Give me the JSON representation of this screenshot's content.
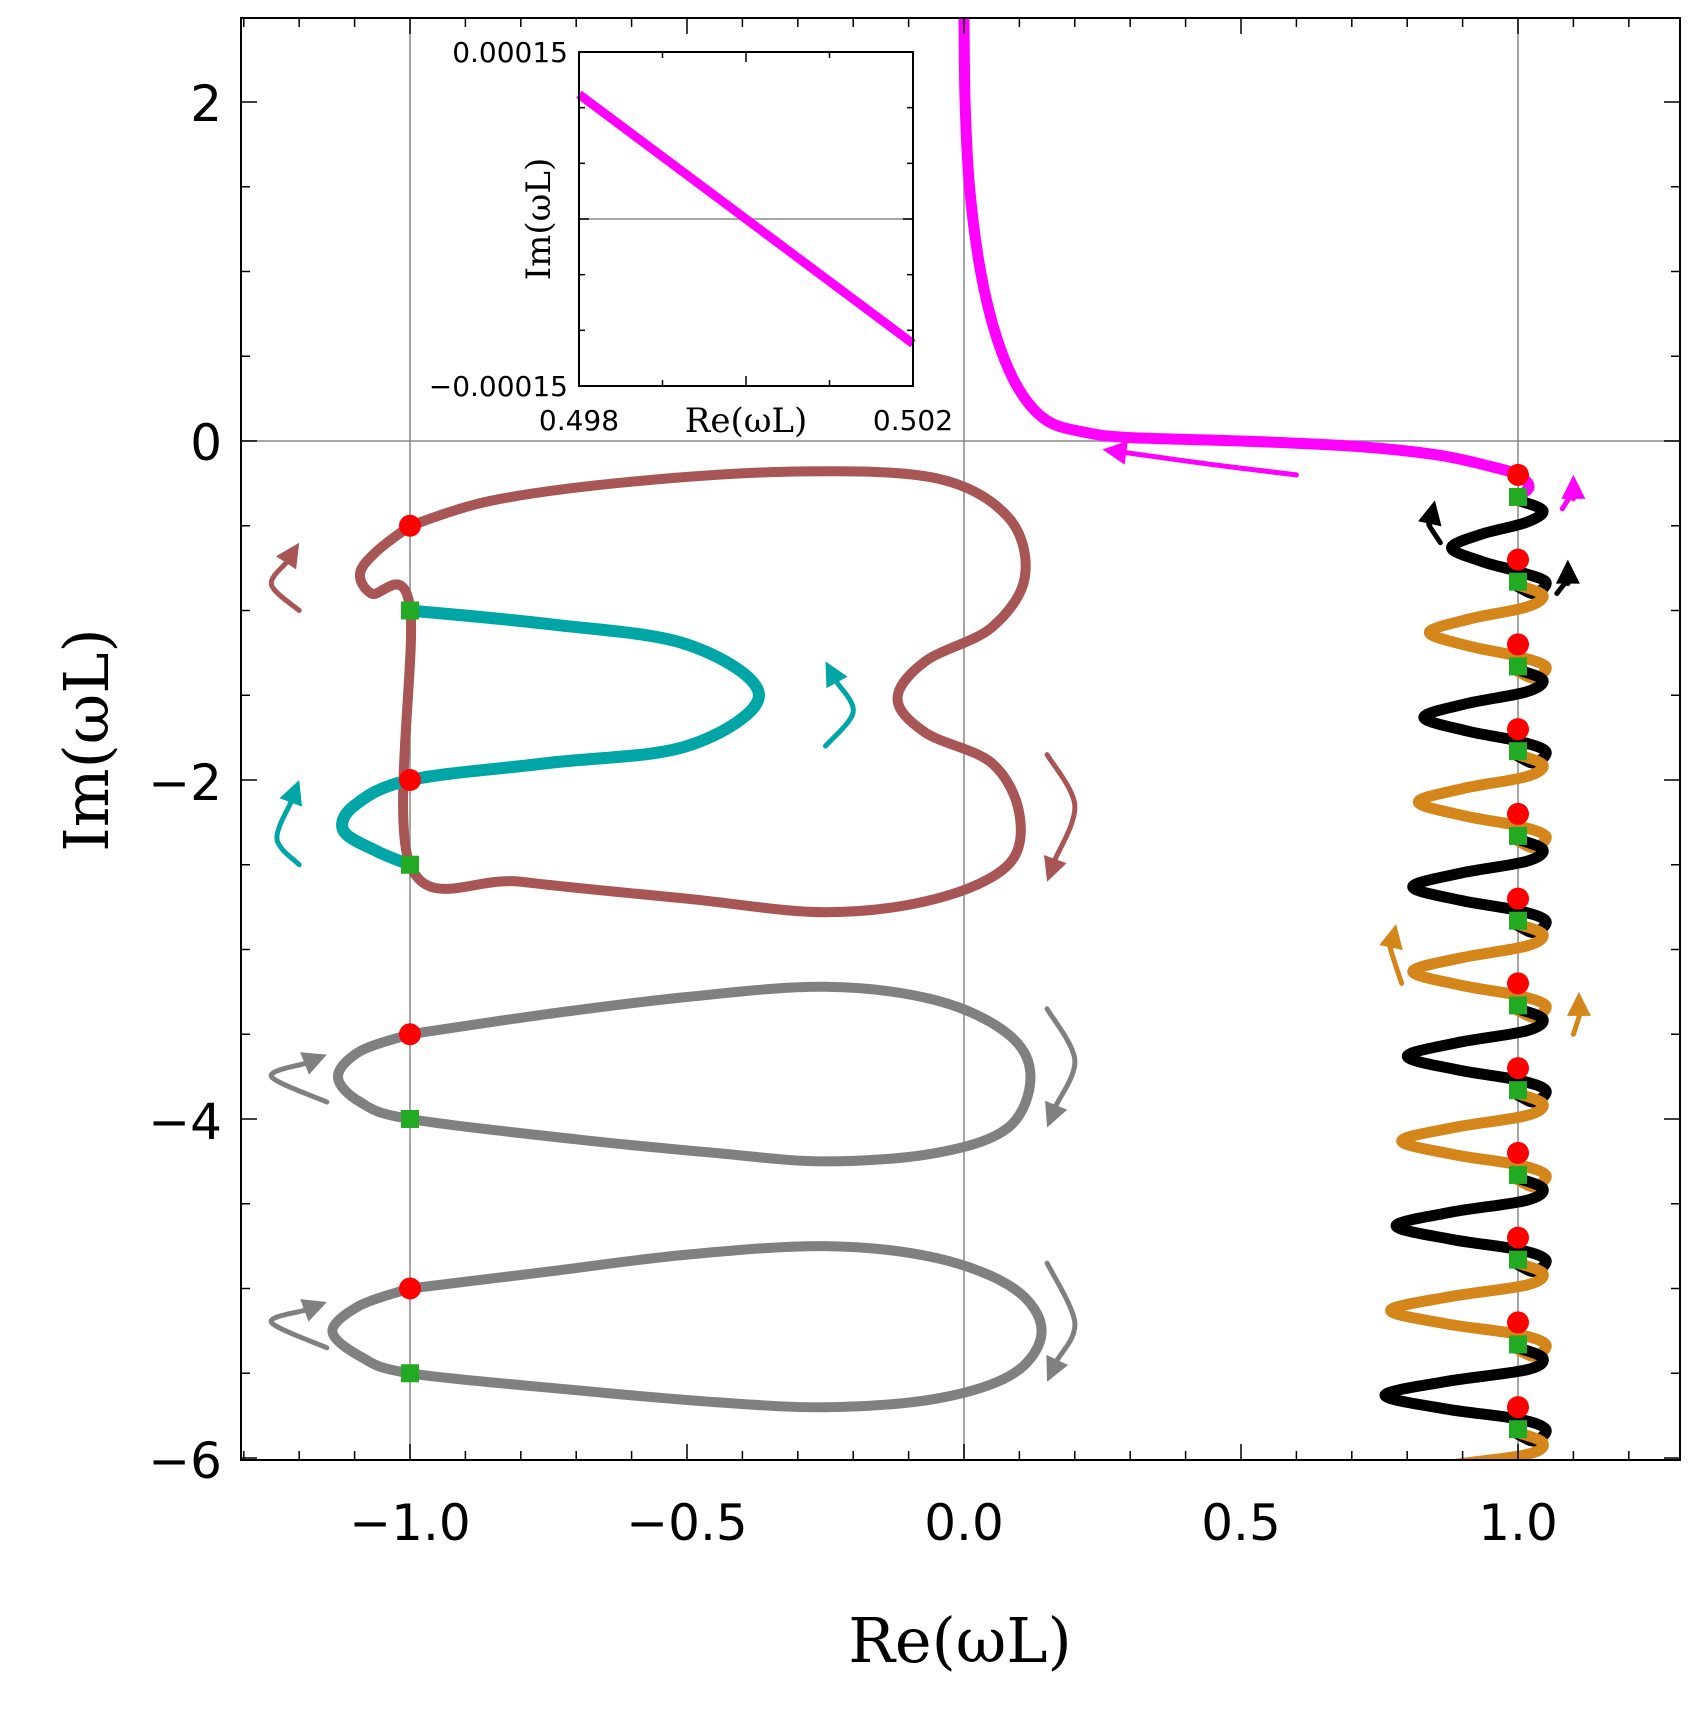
{
  "chart_data": {
    "type": "line",
    "title": "",
    "xlabel": "Re(ωL)",
    "ylabel": "Im(ωL)",
    "xlim": [
      -1.3,
      1.3
    ],
    "ylim": [
      -6,
      2.5
    ],
    "x_ticks": [
      "−1.0",
      "−0.5",
      "0.0",
      "0.5",
      "1.0"
    ],
    "x_tick_values": [
      -1.0,
      -0.5,
      0.0,
      0.5,
      1.0
    ],
    "y_ticks": [
      "2",
      "0",
      "−2",
      "−4",
      "−6"
    ],
    "y_tick_values": [
      2,
      0,
      -2,
      -4,
      -6
    ],
    "gridlines": {
      "x": [
        -1,
        0,
        1
      ],
      "y": [
        0
      ]
    },
    "colors": {
      "magenta": "#ff00ff",
      "brown": "#a85555",
      "teal": "#00a6a6",
      "gray": "#808080",
      "black": "#000000",
      "orange": "#d4861a",
      "red_marker": "#ff0000",
      "green_marker": "#22aa22"
    },
    "series": [
      {
        "name": "magenta",
        "color": "#ff00ff",
        "points": [
          [
            0.0,
            2.5
          ],
          [
            0.002,
            2.0
          ],
          [
            0.01,
            1.5
          ],
          [
            0.03,
            1.0
          ],
          [
            0.06,
            0.6
          ],
          [
            0.1,
            0.3
          ],
          [
            0.15,
            0.12
          ],
          [
            0.22,
            0.05
          ],
          [
            0.3,
            0.02
          ],
          [
            0.5,
            0.0
          ],
          [
            0.7,
            -0.03
          ],
          [
            0.85,
            -0.08
          ],
          [
            0.95,
            -0.15
          ],
          [
            1.0,
            -0.2
          ],
          [
            1.02,
            -0.27
          ],
          [
            1.0,
            -0.33
          ]
        ]
      },
      {
        "name": "brown",
        "color": "#a85555",
        "points": [
          [
            -1.0,
            -0.5
          ],
          [
            -1.06,
            -0.65
          ],
          [
            -1.09,
            -0.78
          ],
          [
            -1.07,
            -0.9
          ],
          [
            -1.0,
            -0.98
          ],
          [
            -1.0,
            -2.5
          ],
          [
            -0.8,
            -2.6
          ],
          [
            -0.5,
            -2.7
          ],
          [
            -0.25,
            -2.78
          ],
          [
            -0.05,
            -2.7
          ],
          [
            0.08,
            -2.5
          ],
          [
            0.1,
            -2.2
          ],
          [
            0.05,
            -1.9
          ],
          [
            -0.07,
            -1.72
          ],
          [
            -0.12,
            -1.52
          ],
          [
            -0.07,
            -1.3
          ],
          [
            0.05,
            -1.1
          ],
          [
            0.11,
            -0.8
          ],
          [
            0.08,
            -0.45
          ],
          [
            -0.05,
            -0.22
          ],
          [
            -0.3,
            -0.18
          ],
          [
            -0.6,
            -0.24
          ],
          [
            -0.85,
            -0.35
          ],
          [
            -1.0,
            -0.5
          ]
        ]
      },
      {
        "name": "teal",
        "color": "#00a6a6",
        "points": [
          [
            -1.0,
            -1.0
          ],
          [
            -0.75,
            -1.08
          ],
          [
            -0.5,
            -1.2
          ],
          [
            -0.37,
            -1.5
          ],
          [
            -0.5,
            -1.8
          ],
          [
            -0.75,
            -1.9
          ],
          [
            -1.0,
            -2.0
          ],
          [
            -1.1,
            -2.15
          ],
          [
            -1.12,
            -2.3
          ],
          [
            -1.06,
            -2.42
          ],
          [
            -1.0,
            -2.5
          ]
        ]
      },
      {
        "name": "gray-1",
        "color": "#808080",
        "points": [
          [
            -1.0,
            -3.5
          ],
          [
            -1.09,
            -3.6
          ],
          [
            -1.13,
            -3.75
          ],
          [
            -1.09,
            -3.9
          ],
          [
            -1.0,
            -4.0
          ],
          [
            -0.7,
            -4.12
          ],
          [
            -0.45,
            -4.2
          ],
          [
            -0.25,
            -4.25
          ],
          [
            -0.05,
            -4.2
          ],
          [
            0.08,
            -4.05
          ],
          [
            0.12,
            -3.75
          ],
          [
            0.08,
            -3.5
          ],
          [
            -0.05,
            -3.3
          ],
          [
            -0.25,
            -3.22
          ],
          [
            -0.5,
            -3.28
          ],
          [
            -0.75,
            -3.38
          ],
          [
            -1.0,
            -3.5
          ]
        ]
      },
      {
        "name": "gray-2",
        "color": "#808080",
        "points": [
          [
            -1.0,
            -5.0
          ],
          [
            -1.09,
            -5.1
          ],
          [
            -1.14,
            -5.25
          ],
          [
            -1.09,
            -5.4
          ],
          [
            -1.0,
            -5.5
          ],
          [
            -0.7,
            -5.6
          ],
          [
            -0.45,
            -5.67
          ],
          [
            -0.25,
            -5.7
          ],
          [
            -0.05,
            -5.65
          ],
          [
            0.09,
            -5.5
          ],
          [
            0.14,
            -5.25
          ],
          [
            0.09,
            -5.0
          ],
          [
            -0.05,
            -4.82
          ],
          [
            -0.25,
            -4.75
          ],
          [
            -0.5,
            -4.8
          ],
          [
            -0.75,
            -4.9
          ],
          [
            -1.0,
            -5.0
          ]
        ]
      }
    ],
    "zigzag": {
      "x_center": 1.0,
      "start": -0.35,
      "half_period": 0.5,
      "count": 12,
      "left_amp": [
        0.12,
        0.16,
        0.17,
        0.18,
        0.19,
        0.19,
        0.2,
        0.21,
        0.22,
        0.23,
        0.24,
        0.25
      ],
      "right_amp": 0.05,
      "colors": [
        "#000000",
        "#d4861a"
      ]
    },
    "markers": {
      "red_circles": [
        [
          -1.0,
          -0.5
        ],
        [
          -1.0,
          -2.0
        ],
        [
          -1.0,
          -3.5
        ],
        [
          -1.0,
          -5.0
        ],
        [
          1.0,
          -0.2
        ],
        [
          1.0,
          -0.7
        ],
        [
          1.0,
          -1.2
        ],
        [
          1.0,
          -1.7
        ],
        [
          1.0,
          -2.2
        ],
        [
          1.0,
          -2.7
        ],
        [
          1.0,
          -3.2
        ],
        [
          1.0,
          -3.7
        ],
        [
          1.0,
          -4.2
        ],
        [
          1.0,
          -4.7
        ],
        [
          1.0,
          -5.2
        ],
        [
          1.0,
          -5.7
        ]
      ],
      "green_squares": [
        [
          -1.0,
          -1.0
        ],
        [
          -1.0,
          -2.5
        ],
        [
          -1.0,
          -4.0
        ],
        [
          -1.0,
          -5.5
        ],
        [
          1.0,
          -0.33
        ],
        [
          1.0,
          -0.83
        ],
        [
          1.0,
          -1.33
        ],
        [
          1.0,
          -1.83
        ],
        [
          1.0,
          -2.33
        ],
        [
          1.0,
          -2.83
        ],
        [
          1.0,
          -3.33
        ],
        [
          1.0,
          -3.83
        ],
        [
          1.0,
          -4.33
        ],
        [
          1.0,
          -4.83
        ],
        [
          1.0,
          -5.33
        ],
        [
          1.0,
          -5.83
        ]
      ]
    },
    "arrows": [
      {
        "color": "#ff00ff",
        "points": [
          [
            0.6,
            -0.2
          ],
          [
            0.45,
            -0.14
          ],
          [
            0.25,
            -0.05
          ]
        ]
      },
      {
        "color": "#ff00ff",
        "points": [
          [
            1.08,
            -0.4
          ],
          [
            1.1,
            -0.3
          ],
          [
            1.1,
            -0.2
          ]
        ]
      },
      {
        "color": "#000000",
        "points": [
          [
            0.86,
            -0.6
          ],
          [
            0.84,
            -0.5
          ],
          [
            0.85,
            -0.35
          ]
        ]
      },
      {
        "color": "#000000",
        "points": [
          [
            1.07,
            -0.9
          ],
          [
            1.09,
            -0.82
          ],
          [
            1.09,
            -0.7
          ]
        ]
      },
      {
        "color": "#d4861a",
        "points": [
          [
            0.79,
            -3.2
          ],
          [
            0.77,
            -3.0
          ],
          [
            0.78,
            -2.85
          ]
        ]
      },
      {
        "color": "#d4861a",
        "points": [
          [
            1.1,
            -3.5
          ],
          [
            1.11,
            -3.4
          ],
          [
            1.11,
            -3.25
          ]
        ]
      },
      {
        "color": "#a85555",
        "points": [
          [
            -1.2,
            -1.0
          ],
          [
            -1.25,
            -0.85
          ],
          [
            -1.2,
            -0.6
          ]
        ]
      },
      {
        "color": "#00a6a6",
        "points": [
          [
            -0.25,
            -1.8
          ],
          [
            -0.2,
            -1.6
          ],
          [
            -0.25,
            -1.3
          ]
        ]
      },
      {
        "color": "#00a6a6",
        "points": [
          [
            -1.2,
            -2.5
          ],
          [
            -1.24,
            -2.35
          ],
          [
            -1.2,
            -2.0
          ]
        ]
      },
      {
        "color": "#a85555",
        "points": [
          [
            0.15,
            -1.85
          ],
          [
            0.2,
            -2.15
          ],
          [
            0.15,
            -2.6
          ]
        ]
      },
      {
        "color": "#808080",
        "points": [
          [
            0.15,
            -3.35
          ],
          [
            0.2,
            -3.65
          ],
          [
            0.15,
            -4.05
          ]
        ]
      },
      {
        "color": "#808080",
        "points": [
          [
            -1.15,
            -3.9
          ],
          [
            -1.25,
            -3.75
          ],
          [
            -1.15,
            -3.62
          ]
        ]
      },
      {
        "color": "#808080",
        "points": [
          [
            0.15,
            -4.85
          ],
          [
            0.2,
            -5.2
          ],
          [
            0.15,
            -5.55
          ]
        ]
      },
      {
        "color": "#808080",
        "points": [
          [
            -1.15,
            -5.35
          ],
          [
            -1.25,
            -5.2
          ],
          [
            -1.15,
            -5.08
          ]
        ]
      }
    ],
    "inset": {
      "xlabel": "Re(ωL)",
      "ylabel": "Im(ωL)",
      "xlim": [
        0.498,
        0.502
      ],
      "ylim": [
        -0.00015,
        0.00015
      ],
      "x_tick_labels": [
        "0.498",
        "0.502"
      ],
      "y_tick_labels": [
        "0.00015",
        "−0.00015"
      ],
      "series": [
        {
          "color": "#ff00ff",
          "points": [
            [
              0.498,
              0.000112
            ],
            [
              0.502,
              -0.000112
            ]
          ]
        }
      ]
    }
  }
}
